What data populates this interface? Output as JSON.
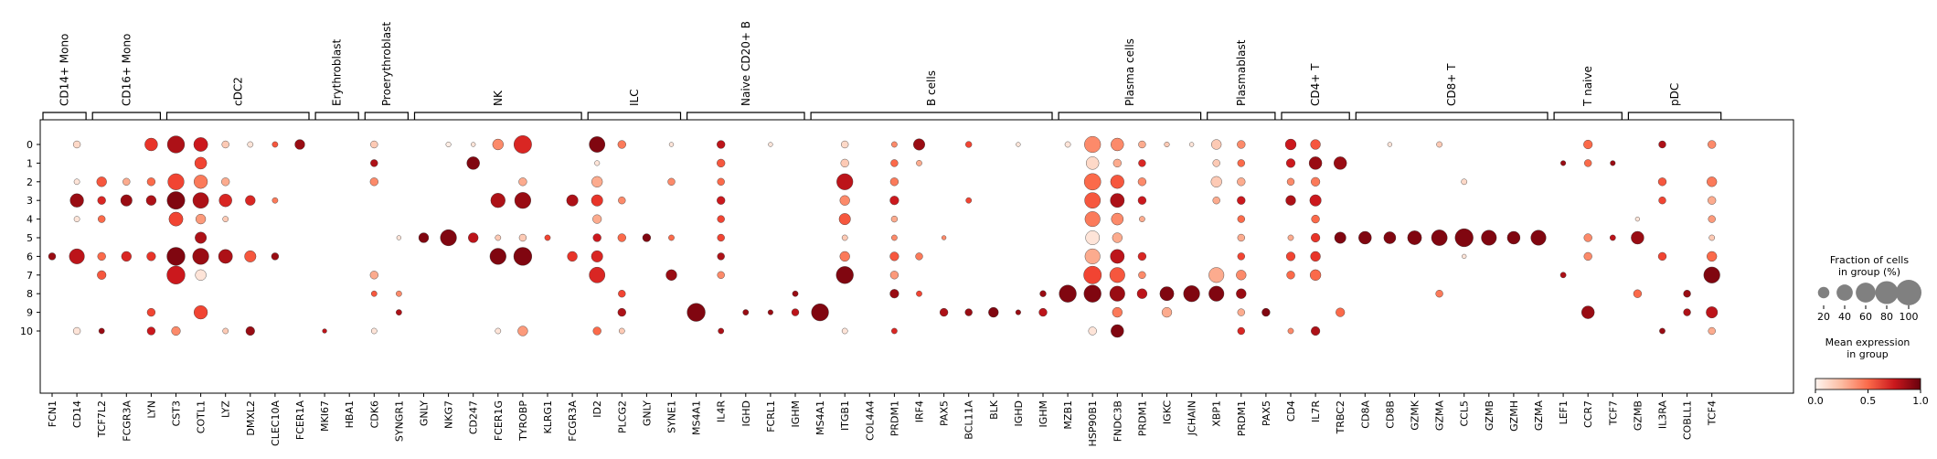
{
  "chart_data": {
    "type": "dotplot",
    "rows": [
      "0",
      "1",
      "2",
      "3",
      "4",
      "5",
      "6",
      "7",
      "8",
      "9",
      "10"
    ],
    "genes": [
      "FCN1",
      "CD14",
      "TCF7L2",
      "FCGR3A",
      "LYN",
      "CST3",
      "COTL1",
      "LYZ",
      "DMXL2",
      "CLEC10A",
      "FCER1A",
      "MKI67",
      "HBA1",
      "CDK6",
      "SYNGR1",
      "GNLY",
      "NKG7",
      "CD247",
      "FCER1G",
      "TYROBP",
      "KLRG1",
      "FCGR3A",
      "ID2",
      "PLCG2",
      "GNLY",
      "SYNE1",
      "MS4A1",
      "IL4R",
      "IGHD",
      "FCRL1",
      "IGHM",
      "MS4A1",
      "ITGB1",
      "COL4A4",
      "PRDM1",
      "IRF4",
      "PAX5",
      "BCL11A",
      "BLK",
      "IGHD",
      "IGHM",
      "MZB1",
      "HSP90B1",
      "FNDC3B",
      "PRDM1",
      "IGKC",
      "JCHAIN",
      "XBP1",
      "PRDM1",
      "PAX5",
      "CD4",
      "IL7R",
      "TRBC2",
      "CD8A",
      "CD8B",
      "GZMK",
      "GZMA",
      "CCL5",
      "GZMB",
      "GZMH",
      "GZMA",
      "LEF1",
      "CCR7",
      "TCF7",
      "GZMB",
      "IL3RA",
      "COBLL1",
      "TCF4"
    ],
    "groups": [
      {
        "label": "CD14+ Mono",
        "start": 0,
        "end": 1
      },
      {
        "label": "CD16+ Mono",
        "start": 2,
        "end": 4
      },
      {
        "label": "cDC2",
        "start": 5,
        "end": 10
      },
      {
        "label": "Erythroblast",
        "start": 11,
        "end": 12
      },
      {
        "label": "Proerythroblast",
        "start": 13,
        "end": 14
      },
      {
        "label": "NK",
        "start": 15,
        "end": 21
      },
      {
        "label": "ILC",
        "start": 22,
        "end": 25
      },
      {
        "label": "Naive CD20+ B",
        "start": 26,
        "end": 30
      },
      {
        "label": "B cells",
        "start": 31,
        "end": 40
      },
      {
        "label": "Plasma cells",
        "start": 41,
        "end": 46
      },
      {
        "label": "Plasmablast",
        "start": 47,
        "end": 49
      },
      {
        "label": "CD4+ T",
        "start": 50,
        "end": 52
      },
      {
        "label": "CD8+ T",
        "start": 53,
        "end": 60
      },
      {
        "label": "T naive",
        "start": 61,
        "end": 63
      },
      {
        "label": "pDC",
        "start": 64,
        "end": 67
      }
    ],
    "dots_encoding": "[row, gene_index, fraction_pct, mean_expression_0_to_1]",
    "dots": [
      [
        0,
        1,
        8,
        0.15
      ],
      [
        0,
        4,
        25,
        0.65
      ],
      [
        0,
        5,
        45,
        0.85
      ],
      [
        0,
        6,
        30,
        0.75
      ],
      [
        0,
        7,
        8,
        0.2
      ],
      [
        0,
        8,
        5,
        0.1
      ],
      [
        0,
        9,
        5,
        0.55
      ],
      [
        0,
        10,
        15,
        0.9
      ],
      [
        0,
        13,
        8,
        0.2
      ],
      [
        0,
        16,
        4,
        0.05
      ],
      [
        0,
        17,
        3,
        0.1
      ],
      [
        0,
        18,
        18,
        0.4
      ],
      [
        0,
        19,
        48,
        0.7
      ],
      [
        0,
        22,
        38,
        0.95
      ],
      [
        0,
        23,
        10,
        0.45
      ],
      [
        0,
        25,
        3,
        0.1
      ],
      [
        0,
        27,
        10,
        0.8
      ],
      [
        0,
        29,
        3,
        0.1
      ],
      [
        0,
        32,
        8,
        0.15
      ],
      [
        0,
        34,
        5,
        0.4
      ],
      [
        0,
        35,
        20,
        0.9
      ],
      [
        0,
        37,
        6,
        0.6
      ],
      [
        0,
        39,
        3,
        0.1
      ],
      [
        0,
        41,
        5,
        0.1
      ],
      [
        0,
        42,
        40,
        0.4
      ],
      [
        0,
        43,
        25,
        0.4
      ],
      [
        0,
        44,
        8,
        0.3
      ],
      [
        0,
        45,
        4,
        0.2
      ],
      [
        0,
        46,
        3,
        0.1
      ],
      [
        0,
        47,
        15,
        0.2
      ],
      [
        0,
        48,
        10,
        0.4
      ],
      [
        0,
        50,
        18,
        0.75
      ],
      [
        0,
        51,
        15,
        0.55
      ],
      [
        0,
        54,
        3,
        0.1
      ],
      [
        0,
        56,
        5,
        0.2
      ],
      [
        0,
        62,
        12,
        0.5
      ],
      [
        0,
        65,
        8,
        0.85
      ],
      [
        0,
        67,
        10,
        0.4
      ],
      [
        1,
        6,
        22,
        0.6
      ],
      [
        1,
        13,
        8,
        0.85
      ],
      [
        1,
        17,
        25,
        0.95
      ],
      [
        1,
        22,
        4,
        0.1
      ],
      [
        1,
        27,
        10,
        0.55
      ],
      [
        1,
        32,
        10,
        0.2
      ],
      [
        1,
        34,
        8,
        0.5
      ],
      [
        1,
        35,
        5,
        0.3
      ],
      [
        1,
        42,
        25,
        0.15
      ],
      [
        1,
        43,
        10,
        0.3
      ],
      [
        1,
        44,
        8,
        0.7
      ],
      [
        1,
        47,
        8,
        0.2
      ],
      [
        1,
        48,
        8,
        0.5
      ],
      [
        1,
        50,
        12,
        0.75
      ],
      [
        1,
        51,
        25,
        0.9
      ],
      [
        1,
        52,
        25,
        0.9
      ],
      [
        1,
        62,
        8,
        0.5
      ],
      [
        1,
        61,
        4,
        0.9
      ],
      [
        1,
        63,
        4,
        0.9
      ],
      [
        2,
        1,
        5,
        0.1
      ],
      [
        2,
        2,
        15,
        0.55
      ],
      [
        2,
        3,
        8,
        0.3
      ],
      [
        2,
        4,
        10,
        0.5
      ],
      [
        2,
        5,
        40,
        0.6
      ],
      [
        2,
        6,
        28,
        0.45
      ],
      [
        2,
        7,
        10,
        0.3
      ],
      [
        2,
        13,
        10,
        0.4
      ],
      [
        2,
        19,
        10,
        0.3
      ],
      [
        2,
        22,
        18,
        0.3
      ],
      [
        2,
        25,
        8,
        0.4
      ],
      [
        2,
        27,
        8,
        0.5
      ],
      [
        2,
        32,
        40,
        0.8
      ],
      [
        2,
        34,
        10,
        0.45
      ],
      [
        2,
        42,
        42,
        0.5
      ],
      [
        2,
        43,
        28,
        0.55
      ],
      [
        2,
        44,
        10,
        0.4
      ],
      [
        2,
        47,
        18,
        0.2
      ],
      [
        2,
        48,
        10,
        0.3
      ],
      [
        2,
        50,
        8,
        0.4
      ],
      [
        2,
        51,
        12,
        0.45
      ],
      [
        2,
        57,
        5,
        0.15
      ],
      [
        2,
        65,
        10,
        0.55
      ],
      [
        2,
        67,
        15,
        0.45
      ],
      [
        3,
        1,
        28,
        0.9
      ],
      [
        3,
        2,
        10,
        0.7
      ],
      [
        3,
        3,
        20,
        0.9
      ],
      [
        3,
        4,
        15,
        0.85
      ],
      [
        3,
        5,
        48,
        0.95
      ],
      [
        3,
        6,
        38,
        0.85
      ],
      [
        3,
        7,
        25,
        0.7
      ],
      [
        3,
        8,
        15,
        0.7
      ],
      [
        3,
        9,
        5,
        0.45
      ],
      [
        3,
        18,
        32,
        0.85
      ],
      [
        3,
        19,
        40,
        0.9
      ],
      [
        3,
        21,
        20,
        0.85
      ],
      [
        3,
        22,
        20,
        0.65
      ],
      [
        3,
        23,
        8,
        0.4
      ],
      [
        3,
        27,
        10,
        0.75
      ],
      [
        3,
        32,
        15,
        0.4
      ],
      [
        3,
        34,
        12,
        0.75
      ],
      [
        3,
        37,
        5,
        0.6
      ],
      [
        3,
        42,
        38,
        0.55
      ],
      [
        3,
        43,
        30,
        0.85
      ],
      [
        3,
        44,
        10,
        0.75
      ],
      [
        3,
        47,
        8,
        0.3
      ],
      [
        3,
        48,
        10,
        0.75
      ],
      [
        3,
        50,
        15,
        0.85
      ],
      [
        3,
        51,
        20,
        0.75
      ],
      [
        3,
        65,
        8,
        0.6
      ],
      [
        3,
        67,
        10,
        0.3
      ],
      [
        4,
        1,
        5,
        0.1
      ],
      [
        4,
        2,
        8,
        0.5
      ],
      [
        4,
        5,
        30,
        0.6
      ],
      [
        4,
        6,
        15,
        0.35
      ],
      [
        4,
        7,
        5,
        0.2
      ],
      [
        4,
        22,
        12,
        0.3
      ],
      [
        4,
        27,
        8,
        0.6
      ],
      [
        4,
        32,
        20,
        0.55
      ],
      [
        4,
        34,
        6,
        0.3
      ],
      [
        4,
        42,
        35,
        0.45
      ],
      [
        4,
        43,
        22,
        0.4
      ],
      [
        4,
        44,
        5,
        0.3
      ],
      [
        4,
        48,
        8,
        0.5
      ],
      [
        4,
        51,
        10,
        0.5
      ],
      [
        4,
        64,
        3,
        0.1
      ],
      [
        4,
        67,
        8,
        0.35
      ],
      [
        5,
        6,
        20,
        0.85
      ],
      [
        5,
        14,
        3,
        0.1
      ],
      [
        5,
        15,
        15,
        0.95
      ],
      [
        5,
        16,
        40,
        0.95
      ],
      [
        5,
        17,
        15,
        0.8
      ],
      [
        5,
        18,
        5,
        0.2
      ],
      [
        5,
        19,
        8,
        0.2
      ],
      [
        5,
        20,
        5,
        0.6
      ],
      [
        5,
        22,
        10,
        0.75
      ],
      [
        5,
        23,
        10,
        0.5
      ],
      [
        5,
        24,
        10,
        0.95
      ],
      [
        5,
        25,
        5,
        0.5
      ],
      [
        5,
        27,
        8,
        0.6
      ],
      [
        5,
        32,
        5,
        0.2
      ],
      [
        5,
        34,
        5,
        0.4
      ],
      [
        5,
        36,
        3,
        0.4
      ],
      [
        5,
        42,
        30,
        0.1
      ],
      [
        5,
        43,
        15,
        0.3
      ],
      [
        5,
        48,
        8,
        0.3
      ],
      [
        5,
        50,
        5,
        0.3
      ],
      [
        5,
        51,
        12,
        0.65
      ],
      [
        5,
        52,
        20,
        0.95
      ],
      [
        5,
        53,
        25,
        0.95
      ],
      [
        5,
        54,
        22,
        0.95
      ],
      [
        5,
        55,
        30,
        0.95
      ],
      [
        5,
        56,
        38,
        0.95
      ],
      [
        5,
        57,
        50,
        0.95
      ],
      [
        5,
        58,
        35,
        0.95
      ],
      [
        5,
        59,
        25,
        0.95
      ],
      [
        5,
        60,
        35,
        0.95
      ],
      [
        5,
        62,
        10,
        0.4
      ],
      [
        5,
        63,
        5,
        0.8
      ],
      [
        5,
        64,
        25,
        0.9
      ],
      [
        5,
        67,
        5,
        0.2
      ],
      [
        6,
        0,
        8,
        0.9
      ],
      [
        6,
        1,
        35,
        0.8
      ],
      [
        6,
        2,
        10,
        0.5
      ],
      [
        6,
        3,
        15,
        0.7
      ],
      [
        6,
        4,
        12,
        0.65
      ],
      [
        6,
        5,
        50,
        0.95
      ],
      [
        6,
        6,
        40,
        0.9
      ],
      [
        6,
        7,
        30,
        0.85
      ],
      [
        6,
        8,
        20,
        0.55
      ],
      [
        6,
        9,
        8,
        0.9
      ],
      [
        6,
        18,
        40,
        0.95
      ],
      [
        6,
        19,
        50,
        0.95
      ],
      [
        6,
        21,
        15,
        0.65
      ],
      [
        6,
        22,
        20,
        0.7
      ],
      [
        6,
        27,
        8,
        0.85
      ],
      [
        6,
        32,
        15,
        0.45
      ],
      [
        6,
        34,
        12,
        0.55
      ],
      [
        6,
        35,
        8,
        0.45
      ],
      [
        6,
        42,
        35,
        0.3
      ],
      [
        6,
        43,
        30,
        0.8
      ],
      [
        6,
        44,
        10,
        0.7
      ],
      [
        6,
        48,
        8,
        0.6
      ],
      [
        6,
        50,
        12,
        0.6
      ],
      [
        6,
        51,
        15,
        0.65
      ],
      [
        6,
        57,
        3,
        0.1
      ],
      [
        6,
        62,
        10,
        0.4
      ],
      [
        6,
        65,
        10,
        0.6
      ],
      [
        6,
        67,
        15,
        0.5
      ],
      [
        7,
        2,
        12,
        0.55
      ],
      [
        7,
        5,
        50,
        0.75
      ],
      [
        7,
        6,
        18,
        0.1
      ],
      [
        7,
        13,
        10,
        0.3
      ],
      [
        7,
        22,
        38,
        0.7
      ],
      [
        7,
        25,
        18,
        0.9
      ],
      [
        7,
        27,
        8,
        0.4
      ],
      [
        7,
        32,
        45,
        0.95
      ],
      [
        7,
        34,
        10,
        0.35
      ],
      [
        7,
        42,
        48,
        0.6
      ],
      [
        7,
        43,
        35,
        0.55
      ],
      [
        7,
        44,
        8,
        0.4
      ],
      [
        7,
        47,
        35,
        0.3
      ],
      [
        7,
        48,
        15,
        0.4
      ],
      [
        7,
        50,
        10,
        0.5
      ],
      [
        7,
        51,
        18,
        0.5
      ],
      [
        7,
        61,
        5,
        0.85
      ],
      [
        7,
        67,
        40,
        0.95
      ],
      [
        8,
        13,
        5,
        0.55
      ],
      [
        8,
        14,
        5,
        0.4
      ],
      [
        8,
        23,
        8,
        0.6
      ],
      [
        8,
        30,
        5,
        0.9
      ],
      [
        8,
        34,
        12,
        0.9
      ],
      [
        8,
        35,
        5,
        0.6
      ],
      [
        8,
        40,
        6,
        0.9
      ],
      [
        8,
        41,
        45,
        0.95
      ],
      [
        8,
        42,
        45,
        0.95
      ],
      [
        8,
        43,
        35,
        0.9
      ],
      [
        8,
        44,
        15,
        0.8
      ],
      [
        8,
        45,
        30,
        0.95
      ],
      [
        8,
        46,
        40,
        0.95
      ],
      [
        8,
        47,
        35,
        0.95
      ],
      [
        8,
        48,
        15,
        0.9
      ],
      [
        8,
        56,
        8,
        0.45
      ],
      [
        8,
        64,
        10,
        0.5
      ],
      [
        8,
        66,
        8,
        0.9
      ],
      [
        9,
        4,
        10,
        0.6
      ],
      [
        9,
        6,
        28,
        0.6
      ],
      [
        9,
        14,
        5,
        0.85
      ],
      [
        9,
        23,
        10,
        0.85
      ],
      [
        9,
        26,
        50,
        0.95
      ],
      [
        9,
        28,
        5,
        0.9
      ],
      [
        9,
        29,
        4,
        0.9
      ],
      [
        9,
        30,
        8,
        0.8
      ],
      [
        9,
        31,
        45,
        0.95
      ],
      [
        9,
        36,
        10,
        0.85
      ],
      [
        9,
        37,
        8,
        0.9
      ],
      [
        9,
        38,
        15,
        0.95
      ],
      [
        9,
        39,
        4,
        0.9
      ],
      [
        9,
        40,
        10,
        0.8
      ],
      [
        9,
        43,
        15,
        0.45
      ],
      [
        9,
        45,
        15,
        0.3
      ],
      [
        9,
        48,
        8,
        0.3
      ],
      [
        9,
        49,
        10,
        0.95
      ],
      [
        9,
        52,
        12,
        0.5
      ],
      [
        9,
        62,
        25,
        0.9
      ],
      [
        9,
        66,
        8,
        0.85
      ],
      [
        9,
        67,
        20,
        0.8
      ]
    ],
    "dots_row10": [
      [
        1,
        8,
        0.1
      ],
      [
        2,
        5,
        0.9
      ],
      [
        4,
        10,
        0.75
      ],
      [
        5,
        12,
        0.4
      ],
      [
        7,
        5,
        0.2
      ],
      [
        8,
        12,
        0.9
      ],
      [
        11,
        3,
        0.8
      ],
      [
        13,
        5,
        0.1
      ],
      [
        18,
        5,
        0.1
      ],
      [
        19,
        15,
        0.35
      ],
      [
        22,
        10,
        0.5
      ],
      [
        23,
        5,
        0.2
      ],
      [
        27,
        5,
        0.85
      ],
      [
        32,
        5,
        0.1
      ],
      [
        34,
        5,
        0.7
      ],
      [
        42,
        10,
        0.1
      ],
      [
        43,
        25,
        0.95
      ],
      [
        48,
        8,
        0.7
      ],
      [
        50,
        5,
        0.4
      ],
      [
        51,
        12,
        0.85
      ],
      [
        65,
        5,
        0.9
      ],
      [
        67,
        8,
        0.3
      ]
    ],
    "size_legend": {
      "title": "Fraction of cells\nin group (%)",
      "values": [
        20,
        40,
        60,
        80,
        100
      ],
      "labels": [
        "20",
        "40",
        "60",
        "80",
        "100"
      ]
    },
    "color_legend": {
      "title": "Mean expression\nin group",
      "min": 0.0,
      "max": 1.0,
      "ticks": [
        "0.0",
        "0.5",
        "1.0"
      ]
    }
  }
}
